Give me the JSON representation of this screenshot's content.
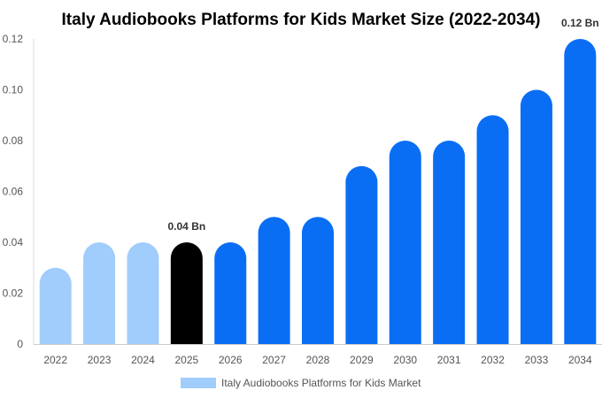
{
  "chart_data": {
    "type": "bar",
    "title": "Italy Audiobooks Platforms for Kids Market Size (2022-2034)",
    "categories": [
      "2022",
      "2023",
      "2024",
      "2025",
      "2026",
      "2027",
      "2028",
      "2029",
      "2030",
      "2031",
      "2032",
      "2033",
      "2034"
    ],
    "series": [
      {
        "name": "Italy Audiobooks Platforms for Kids Market",
        "values": [
          0.03,
          0.04,
          0.04,
          0.04,
          0.04,
          0.05,
          0.05,
          0.07,
          0.08,
          0.08,
          0.09,
          0.1,
          0.12
        ]
      }
    ],
    "ylim": [
      0,
      0.12
    ],
    "yticks": [
      "0",
      "0.02",
      "0.04",
      "0.06",
      "0.08",
      "0.10",
      "0.12"
    ],
    "grid": false,
    "legend_position": "bottom",
    "colors": {
      "historical": "#a0cdfb",
      "current": "#000000",
      "forecast": "#0a6ef5"
    },
    "bar_color_groups": [
      "historical",
      "historical",
      "historical",
      "current",
      "forecast",
      "forecast",
      "forecast",
      "forecast",
      "forecast",
      "forecast",
      "forecast",
      "forecast",
      "forecast"
    ],
    "data_labels": [
      {
        "category": "2025",
        "text": "0.04 Bn"
      },
      {
        "category": "2034",
        "text": "0.12 Bn"
      }
    ],
    "legend_swatch_color": "#a0cdfb"
  }
}
